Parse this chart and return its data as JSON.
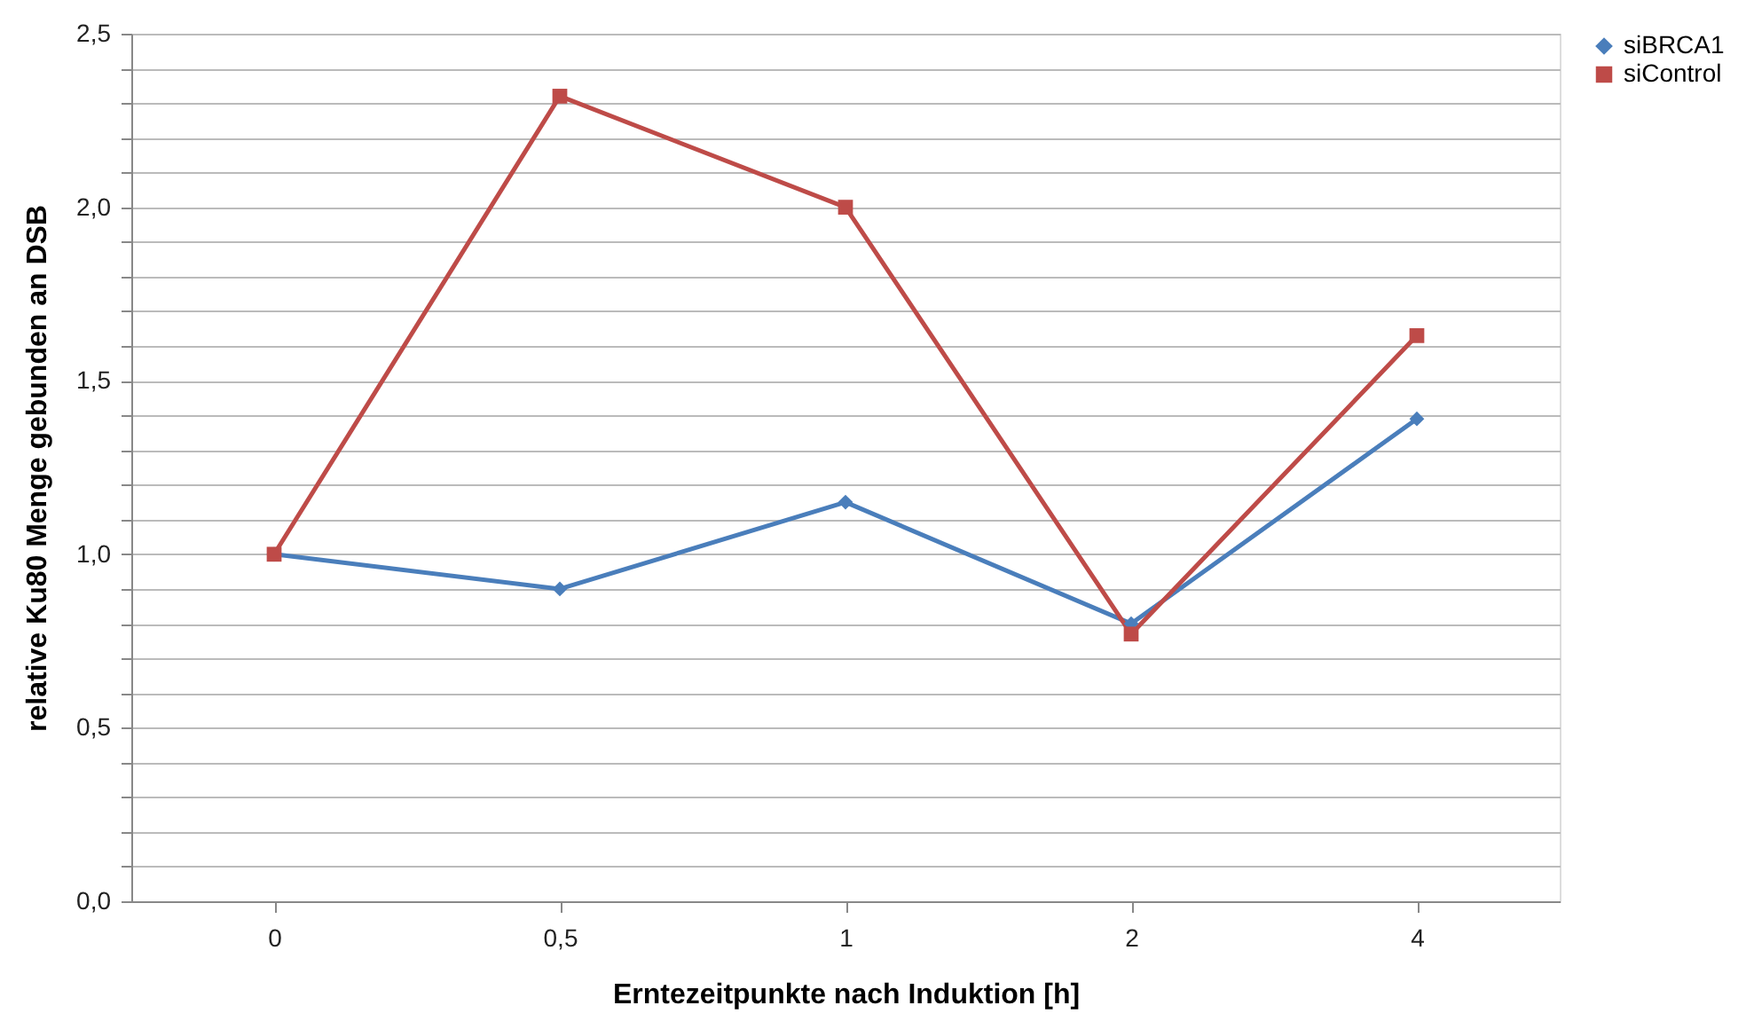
{
  "chart_data": {
    "type": "line",
    "xlabel": "Erntezeitpunkte nach Induktion [h]",
    "ylabel": "relative Ku80 Menge gebunden an DSB",
    "categories": [
      "0",
      "0,5",
      "1",
      "2",
      "4"
    ],
    "series": [
      {
        "name": "siBRCA1",
        "color": "#4a7ebb",
        "marker": "diamond",
        "values": [
          1.0,
          0.9,
          1.15,
          0.8,
          1.39
        ]
      },
      {
        "name": "siControl",
        "color": "#be4b48",
        "marker": "square",
        "values": [
          1.0,
          2.32,
          2.0,
          0.77,
          1.63
        ]
      }
    ],
    "ylim": [
      0,
      2.5
    ],
    "yticks": [
      {
        "value": 0,
        "label": "0,0"
      },
      {
        "value": 0.1,
        "label": null
      },
      {
        "value": 0.2,
        "label": null
      },
      {
        "value": 0.3,
        "label": null
      },
      {
        "value": 0.4,
        "label": null
      },
      {
        "value": 0.5,
        "label": "0,5"
      },
      {
        "value": 0.6,
        "label": null
      },
      {
        "value": 0.7,
        "label": null
      },
      {
        "value": 0.8,
        "label": null
      },
      {
        "value": 0.9,
        "label": null
      },
      {
        "value": 1.0,
        "label": "1,0"
      },
      {
        "value": 1.1,
        "label": null
      },
      {
        "value": 1.2,
        "label": null
      },
      {
        "value": 1.3,
        "label": null
      },
      {
        "value": 1.4,
        "label": null
      },
      {
        "value": 1.5,
        "label": "1,5"
      },
      {
        "value": 1.6,
        "label": null
      },
      {
        "value": 1.7,
        "label": null
      },
      {
        "value": 1.8,
        "label": null
      },
      {
        "value": 1.9,
        "label": null
      },
      {
        "value": 2.0,
        "label": "2,0"
      },
      {
        "value": 2.1,
        "label": null
      },
      {
        "value": 2.2,
        "label": null
      },
      {
        "value": 2.3,
        "label": null
      },
      {
        "value": 2.4,
        "label": null
      },
      {
        "value": 2.5,
        "label": "2,5"
      }
    ],
    "grid": "y",
    "legend": "right",
    "line_style": "solid"
  }
}
